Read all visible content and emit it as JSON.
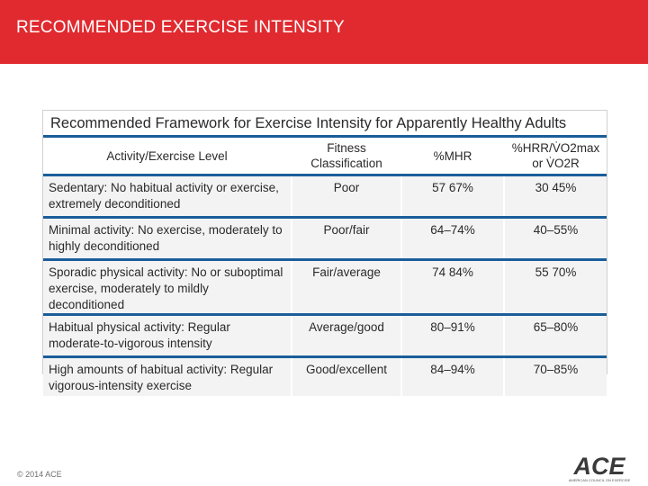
{
  "header": {
    "title": "RECOMMENDED EXERCISE INTENSITY",
    "color": "#e02a2f"
  },
  "table": {
    "caption": "Recommended Framework for Exercise Intensity for Apparently Healthy Adults",
    "headers": {
      "level": "Activity/Exercise Level",
      "fitness": "Fitness Classification",
      "mhr": "%MHR",
      "hrr": "%HRR/V̇O2max or V̇O2R"
    },
    "rows": [
      {
        "level": "Sedentary: No habitual activity or exercise, extremely deconditioned",
        "fitness": "Poor",
        "mhr": "57 67%",
        "hrr": "30 45%"
      },
      {
        "level": "Minimal activity: No exercise, moderately to highly deconditioned",
        "fitness": "Poor/fair",
        "mhr": "64–74%",
        "hrr": "40–55%"
      },
      {
        "level": "Sporadic physical activity: No or suboptimal exercise, moderately to mildly deconditioned",
        "fitness": "Fair/average",
        "mhr": "74 84%",
        "hrr": "55 70%"
      },
      {
        "level": "Habitual physical activity: Regular moderate-to-vigorous intensity",
        "fitness": "Average/good",
        "mhr": "80–91%",
        "hrr": "65–80%"
      },
      {
        "level": "High amounts of habitual activity: Regular vigorous-intensity exercise",
        "fitness": "Good/excellent",
        "mhr": "84–94%",
        "hrr": "70–85%"
      }
    ]
  },
  "footer": {
    "copyright": "© 2014 ACE"
  },
  "logo": {
    "text": "ACE",
    "tagline": "AMERICAN COUNCIL ON EXERCISE"
  },
  "colors": {
    "accent": "#1a5e9a",
    "cell": "#f3f3f3"
  }
}
